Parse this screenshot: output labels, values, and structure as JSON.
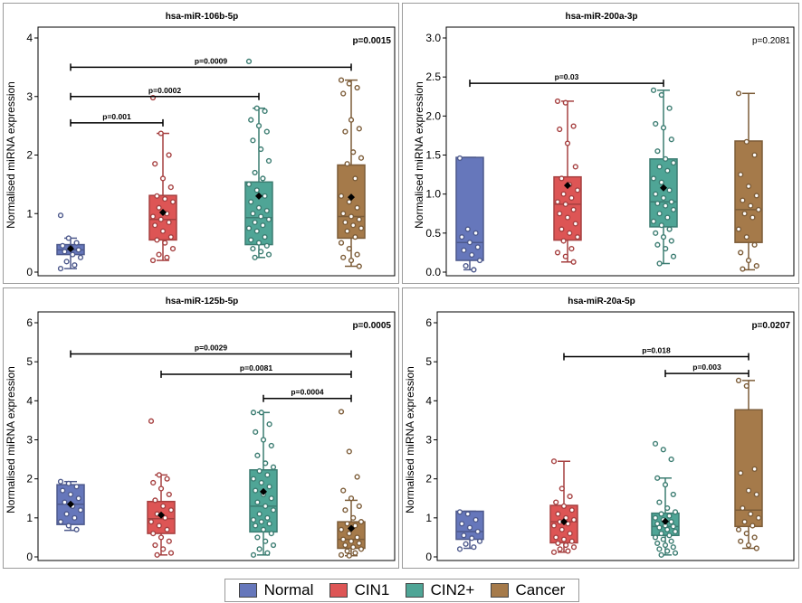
{
  "legend": {
    "items": [
      {
        "label": "Normal",
        "color": "#6677bb"
      },
      {
        "label": "CIN1",
        "color": "#dd5555"
      },
      {
        "label": "CIN2+",
        "color": "#4fa596"
      },
      {
        "label": "Cancer",
        "color": "#a57a4a"
      }
    ]
  },
  "chart_data": [
    {
      "type": "box",
      "title": "hsa-miR-106b-5p",
      "ylabel": "Normalised miRNA expression",
      "ylim": [
        0,
        4
      ],
      "yticks": [
        "0",
        "1",
        "2",
        "3",
        "4"
      ],
      "pvalue": "p=0.0015",
      "pvalue_bold": true,
      "groups": [
        {
          "name": "Normal",
          "min": 0.06,
          "q1": 0.3,
          "median": 0.38,
          "q3": 0.47,
          "max": 0.58,
          "mean": 0.4,
          "points": [
            0.97,
            0.58,
            0.5,
            0.45,
            0.42,
            0.38,
            0.35,
            0.3,
            0.25,
            0.18,
            0.12,
            0.06
          ]
        },
        {
          "name": "CIN1",
          "min": 0.2,
          "q1": 0.55,
          "median": 0.9,
          "q3": 1.31,
          "max": 2.37,
          "mean": 1.02,
          "points": [
            2.98,
            2.37,
            2.0,
            1.85,
            1.6,
            1.45,
            1.3,
            1.25,
            1.2,
            1.1,
            1.0,
            0.95,
            0.9,
            0.85,
            0.8,
            0.7,
            0.6,
            0.55,
            0.5,
            0.4,
            0.3,
            0.25,
            0.2
          ]
        },
        {
          "name": "CIN2+",
          "min": 0.25,
          "q1": 0.47,
          "median": 0.93,
          "q3": 1.54,
          "max": 2.8,
          "mean": 1.3,
          "points": [
            3.6,
            2.8,
            2.75,
            2.6,
            2.5,
            2.4,
            2.25,
            2.1,
            1.9,
            1.7,
            1.6,
            1.5,
            1.4,
            1.3,
            1.2,
            1.1,
            1.05,
            1.0,
            0.95,
            0.9,
            0.85,
            0.8,
            0.75,
            0.7,
            0.6,
            0.55,
            0.5,
            0.45,
            0.4,
            0.35,
            0.3,
            0.25
          ]
        },
        {
          "name": "Cancer",
          "min": 0.1,
          "q1": 0.58,
          "median": 0.95,
          "q3": 1.83,
          "max": 3.28,
          "mean": 1.28,
          "points": [
            3.28,
            3.22,
            3.15,
            3.05,
            2.6,
            2.45,
            2.4,
            2.05,
            1.95,
            1.85,
            1.6,
            1.3,
            1.2,
            1.1,
            1.0,
            0.95,
            0.9,
            0.85,
            0.8,
            0.75,
            0.7,
            0.6,
            0.5,
            0.4,
            0.3,
            0.25,
            0.2,
            0.1
          ]
        }
      ],
      "comparisons": [
        {
          "from": 0,
          "to": 3,
          "label": "p=0.0009",
          "y": 3.5
        },
        {
          "from": 0,
          "to": 2,
          "label": "p=0.0002",
          "y": 3.0
        },
        {
          "from": 0,
          "to": 1,
          "label": "p=0.001",
          "y": 2.55
        }
      ]
    },
    {
      "type": "box",
      "title": "hsa-miR-200a-3p",
      "ylabel": "Normalised miRNA expression",
      "ylim": [
        0,
        3.0
      ],
      "yticks": [
        "0.0",
        "0.5",
        "1.0",
        "1.5",
        "2.0",
        "2.5",
        "3.0"
      ],
      "pvalue": "p=0.2081",
      "pvalue_bold": false,
      "groups": [
        {
          "name": "Normal",
          "min": 0.03,
          "q1": 0.15,
          "median": 0.38,
          "q3": 1.47,
          "max": 1.47,
          "mean": null,
          "points": [
            1.46,
            0.55,
            0.5,
            0.45,
            0.38,
            0.32,
            0.28,
            0.22,
            0.15,
            0.08,
            0.03
          ]
        },
        {
          "name": "CIN1",
          "min": 0.13,
          "q1": 0.41,
          "median": 0.87,
          "q3": 1.22,
          "max": 2.19,
          "mean": 1.11,
          "points": [
            2.19,
            2.17,
            1.87,
            1.83,
            1.65,
            1.35,
            1.2,
            1.12,
            1.05,
            1.0,
            0.95,
            0.9,
            0.87,
            0.8,
            0.75,
            0.7,
            0.62,
            0.55,
            0.5,
            0.45,
            0.4,
            0.3,
            0.25,
            0.2,
            0.13
          ]
        },
        {
          "name": "CIN2+",
          "min": 0.11,
          "q1": 0.58,
          "median": 0.9,
          "q3": 1.45,
          "max": 2.33,
          "mean": 1.08,
          "points": [
            2.33,
            2.27,
            2.1,
            1.9,
            1.85,
            1.7,
            1.55,
            1.45,
            1.4,
            1.35,
            1.3,
            1.2,
            1.15,
            1.05,
            1.0,
            0.95,
            0.9,
            0.88,
            0.85,
            0.8,
            0.75,
            0.7,
            0.65,
            0.6,
            0.55,
            0.5,
            0.45,
            0.4,
            0.35,
            0.3,
            0.2,
            0.11
          ]
        },
        {
          "name": "Cancer",
          "min": 0.03,
          "q1": 0.38,
          "median": 0.8,
          "q3": 1.68,
          "max": 2.29,
          "mean": null,
          "points": [
            2.29,
            1.67,
            1.5,
            1.25,
            1.1,
            0.98,
            0.92,
            0.85,
            0.8,
            0.75,
            0.7,
            0.55,
            0.45,
            0.35,
            0.25,
            0.15,
            0.08,
            0.04
          ]
        }
      ],
      "comparisons": [
        {
          "from": 0,
          "to": 2,
          "label": "p=0.03",
          "y": 2.42
        }
      ]
    },
    {
      "type": "box",
      "title": "hsa-miR-125b-5p",
      "ylabel": "Normalised miRNA expression",
      "ylim": [
        0,
        6
      ],
      "yticks": [
        "0",
        "1",
        "2",
        "3",
        "4",
        "5",
        "6"
      ],
      "pvalue": "p=0.0005",
      "pvalue_bold": true,
      "groups": [
        {
          "name": "Normal",
          "min": 0.68,
          "q1": 0.83,
          "median": 1.35,
          "q3": 1.85,
          "max": 1.93,
          "mean": 1.35,
          "points": [
            1.93,
            1.88,
            1.8,
            1.7,
            1.6,
            1.5,
            1.4,
            1.3,
            1.2,
            1.1,
            1.0,
            0.9,
            0.8,
            0.7
          ]
        },
        {
          "name": "CIN1",
          "min": 0.05,
          "q1": 0.6,
          "median": 0.98,
          "q3": 1.42,
          "max": 2.1,
          "mean": 1.07,
          "points": [
            3.48,
            2.1,
            2.0,
            1.9,
            1.75,
            1.6,
            1.45,
            1.3,
            1.2,
            1.1,
            1.0,
            0.9,
            0.8,
            0.7,
            0.6,
            0.5,
            0.4,
            0.3,
            0.2,
            0.1,
            0.05
          ]
        },
        {
          "name": "CIN2+",
          "min": 0.05,
          "q1": 0.64,
          "median": 1.3,
          "q3": 2.23,
          "max": 3.7,
          "mean": 1.67,
          "points": [
            3.7,
            3.7,
            3.4,
            3.2,
            3.0,
            2.85,
            2.6,
            2.4,
            2.3,
            2.2,
            2.1,
            2.0,
            1.9,
            1.8,
            1.7,
            1.6,
            1.5,
            1.4,
            1.3,
            1.2,
            1.1,
            1.0,
            0.95,
            0.9,
            0.85,
            0.8,
            0.7,
            0.6,
            0.5,
            0.4,
            0.3,
            0.2,
            0.1,
            0.05
          ]
        },
        {
          "name": "Cancer",
          "min": 0.03,
          "q1": 0.22,
          "median": 0.45,
          "q3": 0.9,
          "max": 1.45,
          "mean": 0.73,
          "points": [
            3.72,
            2.7,
            2.05,
            1.7,
            1.5,
            1.3,
            1.2,
            1.0,
            0.9,
            0.85,
            0.8,
            0.7,
            0.6,
            0.5,
            0.45,
            0.4,
            0.35,
            0.3,
            0.25,
            0.2,
            0.15,
            0.1,
            0.05,
            0.03
          ]
        }
      ],
      "comparisons": [
        {
          "from": 0,
          "to": 3,
          "label": "p=0.0029",
          "y": 5.2
        },
        {
          "from": 1,
          "to": 3,
          "label": "p=0.0081",
          "y": 4.68
        },
        {
          "from": 2,
          "to": 3,
          "label": "p=0.0004",
          "y": 4.06
        }
      ]
    },
    {
      "type": "box",
      "title": "hsa-miR-20a-5p",
      "ylabel": "Normalised miRNA expression",
      "ylim": [
        0,
        6
      ],
      "yticks": [
        "0",
        "1",
        "2",
        "3",
        "4",
        "5",
        "6"
      ],
      "pvalue": "p=0.0207",
      "pvalue_bold": true,
      "groups": [
        {
          "name": "Normal",
          "min": 0.22,
          "q1": 0.45,
          "median": 0.65,
          "q3": 1.17,
          "max": 1.17,
          "mean": null,
          "points": [
            1.15,
            1.1,
            0.95,
            0.85,
            0.75,
            0.65,
            0.55,
            0.48,
            0.4,
            0.33,
            0.25,
            0.2
          ]
        },
        {
          "name": "CIN1",
          "min": 0.12,
          "q1": 0.36,
          "median": 0.9,
          "q3": 1.32,
          "max": 2.45,
          "mean": 0.9,
          "points": [
            2.45,
            1.75,
            1.55,
            1.4,
            1.3,
            1.2,
            1.1,
            1.0,
            0.95,
            0.9,
            0.85,
            0.8,
            0.7,
            0.6,
            0.5,
            0.45,
            0.4,
            0.35,
            0.3,
            0.25,
            0.2,
            0.15,
            0.12
          ]
        },
        {
          "name": "CIN2+",
          "min": 0.05,
          "q1": 0.55,
          "median": 0.78,
          "q3": 1.12,
          "max": 2.02,
          "mean": 0.91,
          "points": [
            2.9,
            2.75,
            2.5,
            2.02,
            1.85,
            1.6,
            1.4,
            1.25,
            1.15,
            1.1,
            1.05,
            1.0,
            0.95,
            0.9,
            0.85,
            0.8,
            0.78,
            0.75,
            0.7,
            0.65,
            0.6,
            0.55,
            0.5,
            0.45,
            0.4,
            0.35,
            0.3,
            0.25,
            0.2,
            0.15,
            0.1,
            0.05
          ]
        },
        {
          "name": "Cancer",
          "min": 0.22,
          "q1": 0.78,
          "median": 1.2,
          "q3": 3.77,
          "max": 4.52,
          "mean": null,
          "points": [
            4.52,
            4.38,
            2.25,
            2.15,
            1.7,
            1.6,
            1.25,
            1.1,
            1.0,
            0.9,
            0.8,
            0.7,
            0.6,
            0.5,
            0.4,
            0.3,
            0.22
          ]
        }
      ],
      "comparisons": [
        {
          "from": 1,
          "to": 3,
          "label": "p=0.018",
          "y": 5.13
        },
        {
          "from": 2,
          "to": 3,
          "label": "p=0.003",
          "y": 4.7
        }
      ]
    }
  ]
}
